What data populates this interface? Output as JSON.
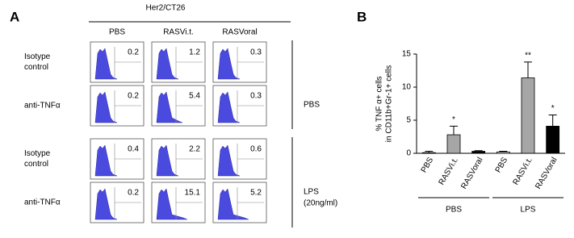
{
  "panel_a": {
    "label": "A",
    "header": "Her2/CT26",
    "columns": [
      "PBS",
      "RASVi.t.",
      "RASVoral"
    ],
    "rows": [
      {
        "label": [
          "Isotype",
          "control"
        ],
        "values": [
          "0.2",
          "1.2",
          "0.3"
        ]
      },
      {
        "label": [
          "anti-TNFα"
        ],
        "values": [
          "0.2",
          "5.4",
          "0.3"
        ]
      },
      {
        "label": [
          "Isotype",
          "control"
        ],
        "values": [
          "0.4",
          "2.2",
          "0.6"
        ]
      },
      {
        "label": [
          "anti-TNFα"
        ],
        "values": [
          "0.2",
          "15.1",
          "5.2"
        ]
      }
    ],
    "groups": [
      [
        "PBS"
      ],
      [
        "LPS",
        "(20ng/ml)"
      ]
    ]
  },
  "chart_data": {
    "type": "bar",
    "panel_label": "B",
    "y_label": [
      "% TNF α+ cells",
      "in CD11b+Gr-1+ cells"
    ],
    "categories": [
      "PBS",
      "RASVi.t.",
      "RASVoral",
      "PBS",
      "RASVi.t.",
      "RASVoral"
    ],
    "values": [
      0.1,
      2.8,
      0.3,
      0.2,
      11.4,
      4.1
    ],
    "errors": [
      0.2,
      1.3,
      0.1,
      0.1,
      2.4,
      1.7
    ],
    "colors": [
      "#ffffff",
      "#a6a6a6",
      "#000000",
      "#ffffff",
      "#a6a6a6",
      "#000000"
    ],
    "significance": [
      null,
      "*",
      null,
      null,
      "**",
      "*"
    ],
    "groups": [
      {
        "name": "PBS",
        "span": [
          0,
          2
        ]
      },
      {
        "name": "LPS",
        "span": [
          3,
          5
        ]
      }
    ],
    "ylim": [
      0,
      15
    ],
    "yticks": [
      0,
      5,
      10,
      15
    ]
  }
}
